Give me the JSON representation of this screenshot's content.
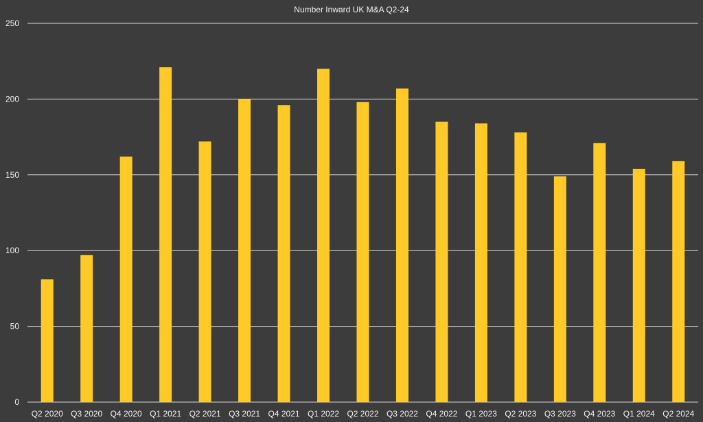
{
  "chart_data": {
    "type": "bar",
    "title": "Number Inward UK M&A Q2-24",
    "xlabel": "",
    "ylabel": "",
    "categories": [
      "Q2 2020",
      "Q3 2020",
      "Q4 2020",
      "Q1 2021",
      "Q2 2021",
      "Q3 2021",
      "Q4 2021",
      "Q1 2022",
      "Q2 2022",
      "Q3 2022",
      "Q4 2022",
      "Q1 2023",
      "Q2 2023",
      "Q3 2023",
      "Q4 2023",
      "Q1 2024",
      "Q2 2024"
    ],
    "values": [
      81,
      97,
      162,
      221,
      172,
      200,
      196,
      220,
      198,
      207,
      185,
      184,
      178,
      149,
      171,
      154,
      159
    ],
    "ylim": [
      0,
      250
    ],
    "yticks": [
      0,
      50,
      100,
      150,
      200,
      250
    ],
    "grid": true,
    "legend": "none",
    "colors": {
      "background": "#3c3c3c",
      "bar": "#ffca28",
      "grid": "#d9d9d9",
      "text": "#f2f2f2"
    }
  }
}
